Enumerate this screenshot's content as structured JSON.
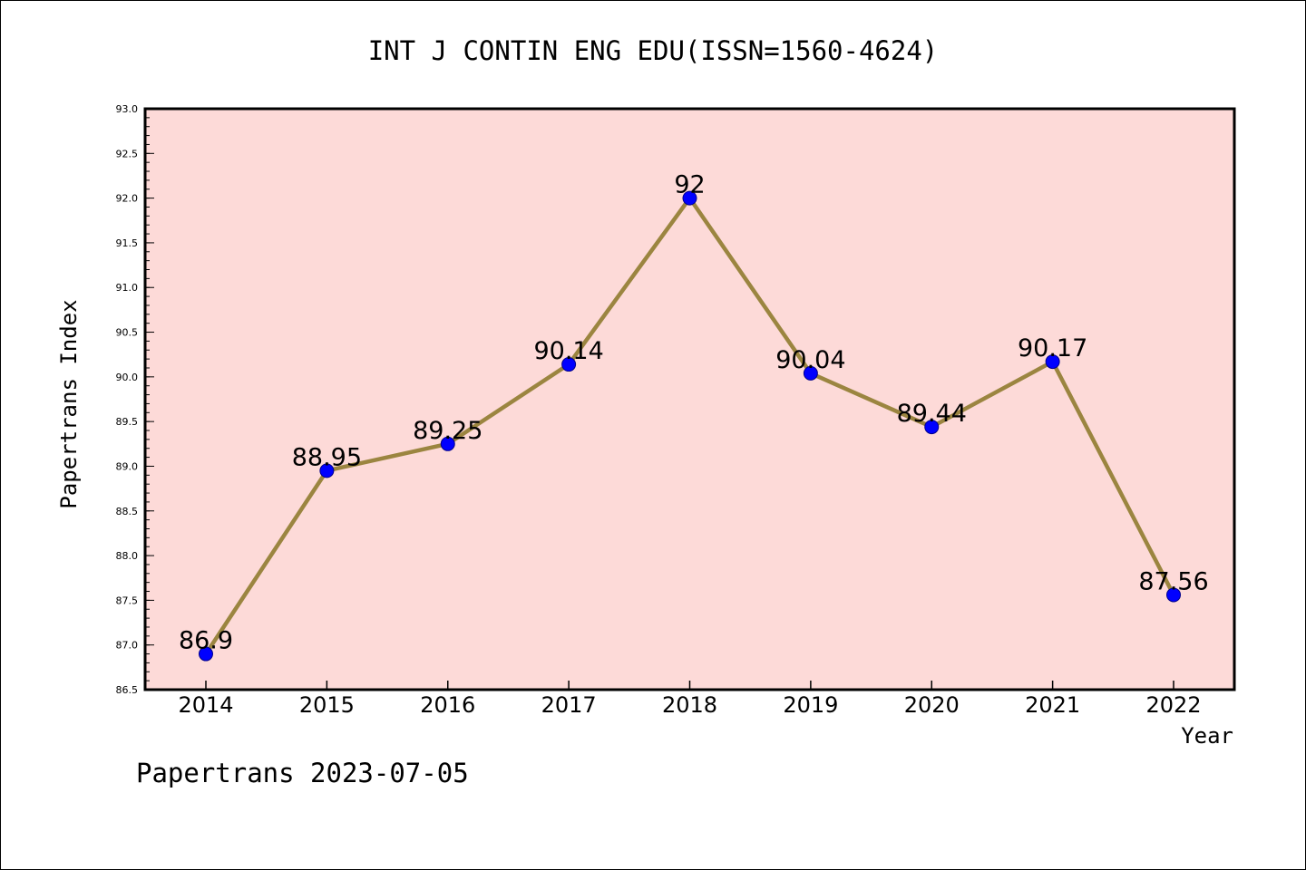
{
  "chart_data": {
    "type": "line",
    "title": "INT J CONTIN ENG EDU(ISSN=1560-4624)",
    "xlabel": "Year",
    "ylabel": "Papertrans Index",
    "categories": [
      "2014",
      "2015",
      "2016",
      "2017",
      "2018",
      "2019",
      "2020",
      "2021",
      "2022"
    ],
    "series": [
      {
        "values": [
          86.9,
          88.95,
          89.25,
          90.14,
          92,
          90.04,
          89.44,
          90.17,
          87.56
        ],
        "labels": [
          "86.9",
          "88.95",
          "89.25",
          "90.14",
          "92",
          "90.04",
          "89.44",
          "90.17",
          "87.56"
        ]
      }
    ],
    "ylim": [
      86.5,
      93.0
    ],
    "yticks": [
      "86.5",
      "87.0",
      "87.5",
      "88.0",
      "88.5",
      "89.0",
      "89.5",
      "90.0",
      "90.5",
      "91.0",
      "91.5",
      "92.0",
      "92.5",
      "93.0"
    ],
    "grid": false,
    "colors": {
      "plot_background": "#fddad8",
      "line": "#9b8540",
      "marker": "#0000ff"
    }
  },
  "footer": "Papertrans 2023-07-05"
}
